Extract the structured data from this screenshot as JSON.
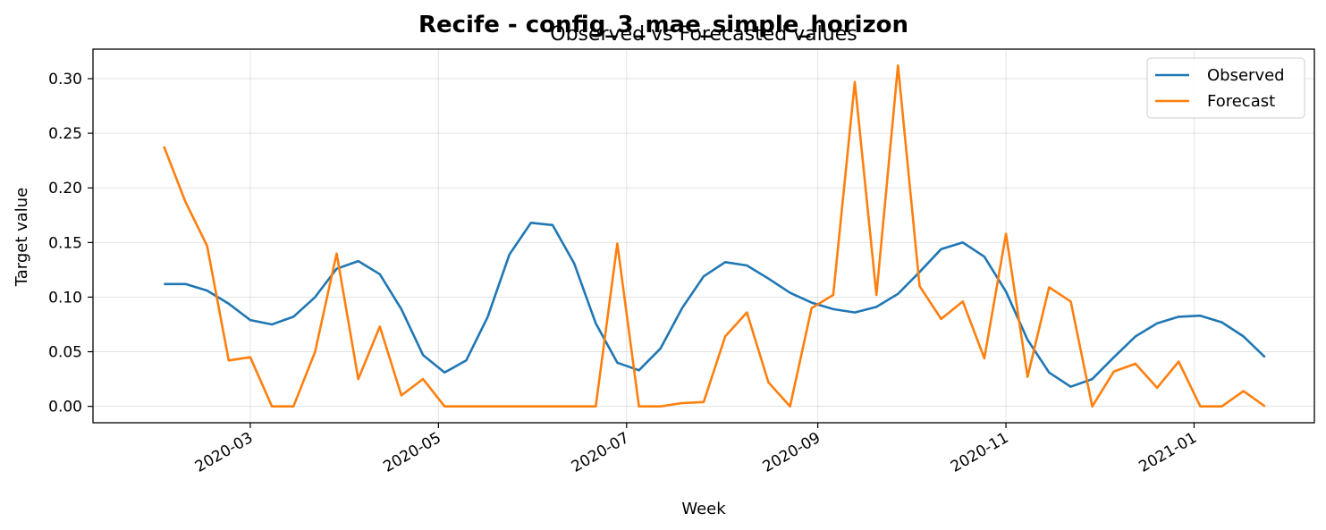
{
  "figure": {
    "title": "Recife - config_3_mae_simple_horizon",
    "subtitle": "Observed vs Forecasted values"
  },
  "chart_data": {
    "type": "line",
    "title": "Observed vs Forecasted values",
    "xlabel": "Week",
    "ylabel": "Target value",
    "x_type": "date",
    "xlim": [
      "2020-01-10",
      "2021-02-09"
    ],
    "ylim": [
      -0.015,
      0.327
    ],
    "grid": true,
    "legend_position": "top-right",
    "x_ticks": [
      "2020-03-01",
      "2020-05-01",
      "2020-07-01",
      "2020-09-01",
      "2020-11-01",
      "2021-01-01"
    ],
    "x_tick_labels": [
      "2020-03",
      "2020-05",
      "2020-07",
      "2020-09",
      "2020-11",
      "2021-01"
    ],
    "y_ticks": [
      0.0,
      0.05,
      0.1,
      0.15,
      0.2,
      0.25,
      0.3
    ],
    "y_tick_labels": [
      "0.00",
      "0.05",
      "0.10",
      "0.15",
      "0.20",
      "0.25",
      "0.30"
    ],
    "x": [
      "2020-02-02",
      "2020-02-09",
      "2020-02-16",
      "2020-02-23",
      "2020-03-01",
      "2020-03-08",
      "2020-03-15",
      "2020-03-22",
      "2020-03-29",
      "2020-04-05",
      "2020-04-12",
      "2020-04-19",
      "2020-04-26",
      "2020-05-03",
      "2020-05-10",
      "2020-05-17",
      "2020-05-24",
      "2020-05-31",
      "2020-06-07",
      "2020-06-14",
      "2020-06-21",
      "2020-06-28",
      "2020-07-05",
      "2020-07-12",
      "2020-07-19",
      "2020-07-26",
      "2020-08-02",
      "2020-08-09",
      "2020-08-16",
      "2020-08-23",
      "2020-08-30",
      "2020-09-06",
      "2020-09-13",
      "2020-09-20",
      "2020-09-27",
      "2020-10-04",
      "2020-10-11",
      "2020-10-18",
      "2020-10-25",
      "2020-11-01",
      "2020-11-08",
      "2020-11-15",
      "2020-11-22",
      "2020-11-29",
      "2020-12-06",
      "2020-12-13",
      "2020-12-20",
      "2020-12-27",
      "2021-01-03",
      "2021-01-10",
      "2021-01-17",
      "2021-01-24"
    ],
    "series": [
      {
        "name": "Observed",
        "color": "#1f77b4",
        "values": [
          0.112,
          0.112,
          0.106,
          0.094,
          0.079,
          0.075,
          0.082,
          0.1,
          0.126,
          0.133,
          0.121,
          0.089,
          0.047,
          0.031,
          0.042,
          0.082,
          0.139,
          0.168,
          0.166,
          0.131,
          0.076,
          0.04,
          0.033,
          0.053,
          0.09,
          0.119,
          0.132,
          0.129,
          0.117,
          0.104,
          0.095,
          0.089,
          0.086,
          0.091,
          0.103,
          0.123,
          0.144,
          0.15,
          0.137,
          0.105,
          0.061,
          0.031,
          0.018,
          0.025,
          0.045,
          0.064,
          0.076,
          0.082,
          0.083,
          0.077,
          0.064,
          0.045
        ]
      },
      {
        "name": "Forecast",
        "color": "#ff7f0e",
        "values": [
          0.238,
          0.187,
          0.147,
          0.042,
          0.045,
          0.0,
          0.0,
          0.05,
          0.14,
          0.025,
          0.073,
          0.01,
          0.025,
          0.0,
          0.0,
          0.0,
          0.0,
          0.0,
          0.0,
          0.0,
          0.0,
          0.149,
          0.0,
          0.0,
          0.003,
          0.004,
          0.064,
          0.086,
          0.022,
          0.0,
          0.09,
          0.102,
          0.297,
          0.102,
          0.312,
          0.11,
          0.08,
          0.096,
          0.044,
          0.158,
          0.027,
          0.109,
          0.096,
          0.0,
          0.032,
          0.039,
          0.017,
          0.041,
          0.0,
          0.0,
          0.014,
          0.0
        ]
      }
    ]
  }
}
